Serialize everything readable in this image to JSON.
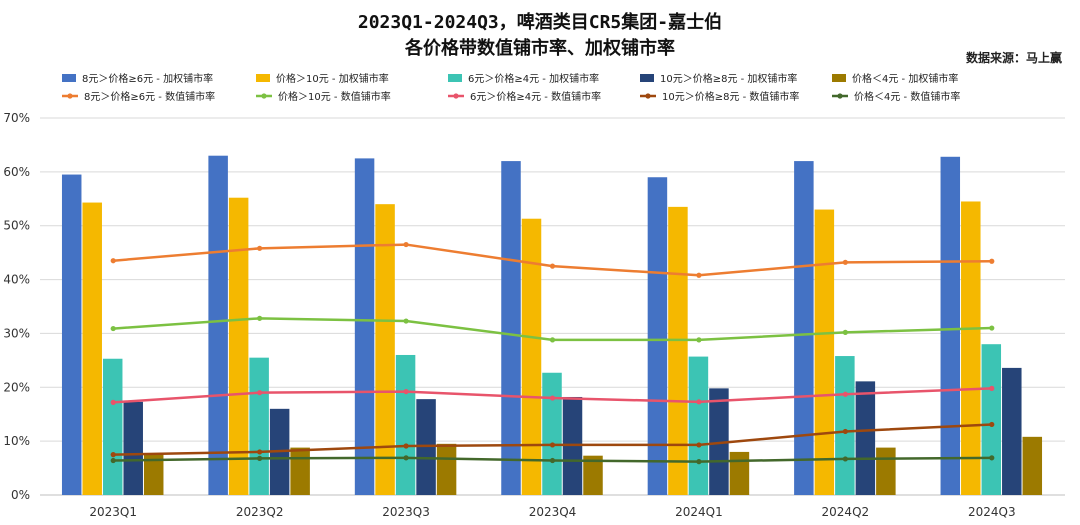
{
  "chart_data": {
    "type": "bar",
    "title": "2023Q1-2024Q3，啤酒类目CR5集团-嘉士伯",
    "subtitle": "各价格带数值铺市率、加权铺市率",
    "source": "数据来源：马上赢",
    "ylim": [
      0,
      70
    ],
    "yticks": [
      "0%",
      "10%",
      "20%",
      "30%",
      "40%",
      "50%",
      "60%",
      "70%"
    ],
    "categories": [
      "2023Q1",
      "2023Q2",
      "2023Q3",
      "2023Q4",
      "2024Q1",
      "2024Q2",
      "2024Q3"
    ],
    "bar_series": [
      {
        "name": "8元＞价格≥6元 - 加权铺市率",
        "color": "#4472C4",
        "values": [
          59.5,
          63,
          62.5,
          62,
          59,
          62,
          62.8
        ]
      },
      {
        "name": "价格＞10元 - 加权铺市率",
        "color": "#F5B800",
        "values": [
          54.3,
          55.2,
          54,
          51.3,
          53.5,
          53,
          54.5
        ]
      },
      {
        "name": "6元＞价格≥4元 - 加权铺市率",
        "color": "#3CC4B4",
        "values": [
          25.3,
          25.5,
          26,
          22.7,
          25.7,
          25.8,
          28
        ]
      },
      {
        "name": "10元＞价格≥8元 - 加权铺市率",
        "color": "#264478",
        "values": [
          17.3,
          16,
          17.8,
          18.2,
          19.8,
          21.1,
          23.6
        ]
      },
      {
        "name": "价格＜4元 - 加权铺市率",
        "color": "#9C7A00",
        "values": [
          7.8,
          8.8,
          9.5,
          7.3,
          8,
          8.8,
          10.8
        ]
      }
    ],
    "line_series": [
      {
        "name": "8元＞价格≥6元 - 数值铺市率",
        "color": "#ED7D31",
        "values": [
          43.5,
          45.8,
          46.5,
          42.5,
          40.8,
          43.2,
          43.4
        ]
      },
      {
        "name": "价格＞10元 - 数值铺市率",
        "color": "#7CC142",
        "values": [
          30.9,
          32.8,
          32.3,
          28.8,
          28.8,
          30.2,
          31
        ]
      },
      {
        "name": "6元＞价格≥4元 - 数值铺市率",
        "color": "#E8546B",
        "values": [
          17.2,
          19,
          19.2,
          18,
          17.3,
          18.7,
          19.8
        ]
      },
      {
        "name": "10元＞价格≥8元 - 数值铺市率",
        "color": "#9E480E",
        "values": [
          7.5,
          8,
          9.1,
          9.3,
          9.3,
          11.8,
          13.1
        ]
      },
      {
        "name": "价格＜4元 - 数值铺市率",
        "color": "#43682B",
        "values": [
          6.4,
          6.8,
          6.9,
          6.4,
          6.2,
          6.7,
          6.9
        ]
      }
    ]
  }
}
